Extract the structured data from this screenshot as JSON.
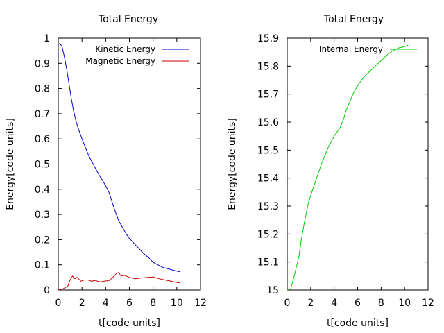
{
  "chart_data": [
    {
      "type": "line",
      "title": "Total Energy",
      "xlabel": "t[code units]",
      "ylabel": "Energy[code units]",
      "xlim": [
        0,
        12
      ],
      "ylim": [
        0,
        1
      ],
      "x_ticks": [
        "0",
        "2",
        "4",
        "6",
        "8",
        "10",
        "12"
      ],
      "y_ticks": [
        "0",
        "0.1",
        "0.2",
        "0.3",
        "0.4",
        "0.5",
        "0.6",
        "0.7",
        "0.8",
        "0.9",
        "1"
      ],
      "grid": false,
      "legend_position": "top-right",
      "series": [
        {
          "name": "Kinetic Energy",
          "color": "#0000cc",
          "x": [
            0,
            0.1,
            0.3,
            0.5,
            0.7,
            0.9,
            1.1,
            1.3,
            1.5,
            1.7,
            2.0,
            2.3,
            2.6,
            3.0,
            3.4,
            3.8,
            4.1,
            4.3,
            4.6,
            4.9,
            5.1,
            5.4,
            5.7,
            6.0,
            6.4,
            6.8,
            7.2,
            7.6,
            8.0,
            8.4,
            8.8,
            9.2,
            9.6,
            10.0,
            10.3
          ],
          "values": [
            0.975,
            0.978,
            0.97,
            0.93,
            0.88,
            0.82,
            0.76,
            0.71,
            0.67,
            0.64,
            0.6,
            0.565,
            0.53,
            0.495,
            0.46,
            0.43,
            0.405,
            0.385,
            0.34,
            0.3,
            0.275,
            0.25,
            0.225,
            0.205,
            0.185,
            0.165,
            0.145,
            0.13,
            0.11,
            0.1,
            0.09,
            0.085,
            0.08,
            0.075,
            0.072
          ]
        },
        {
          "name": "Magnetic Energy",
          "color": "#cc0000",
          "x": [
            0,
            0.4,
            0.8,
            1.0,
            1.2,
            1.4,
            1.6,
            1.9,
            2.2,
            2.5,
            2.8,
            3.1,
            3.5,
            3.9,
            4.3,
            4.6,
            4.9,
            5.1,
            5.3,
            5.6,
            6.0,
            6.5,
            7.0,
            7.5,
            8.0,
            8.5,
            9.0,
            9.5,
            10.0,
            10.3
          ],
          "values": [
            0.0,
            0.005,
            0.015,
            0.04,
            0.055,
            0.045,
            0.05,
            0.035,
            0.04,
            0.04,
            0.035,
            0.038,
            0.032,
            0.035,
            0.038,
            0.05,
            0.065,
            0.07,
            0.055,
            0.058,
            0.05,
            0.045,
            0.048,
            0.05,
            0.052,
            0.045,
            0.04,
            0.035,
            0.03,
            0.028
          ]
        }
      ]
    },
    {
      "type": "line",
      "title": "Total Energy",
      "xlabel": "t[code units]",
      "ylabel": "Energy[code units]",
      "xlim": [
        0,
        12
      ],
      "ylim": [
        15,
        15.9
      ],
      "x_ticks": [
        "0",
        "2",
        "4",
        "6",
        "8",
        "10",
        "12"
      ],
      "y_ticks": [
        "15",
        "15.1",
        "15.2",
        "15.3",
        "15.4",
        "15.5",
        "15.6",
        "15.7",
        "15.8",
        "15.9"
      ],
      "grid": false,
      "legend_position": "top-right",
      "series": [
        {
          "name": "Internal Energy",
          "color": "#00cc00",
          "x": [
            0,
            0.3,
            0.6,
            1.0,
            1.2,
            1.5,
            1.8,
            2.1,
            2.5,
            3.0,
            3.5,
            4.0,
            4.5,
            4.8,
            5.0,
            5.3,
            5.6,
            6.0,
            6.5,
            7.0,
            7.5,
            8.0,
            8.5,
            9.0,
            9.5,
            10.0,
            10.3
          ],
          "values": [
            15.0,
            15.005,
            15.05,
            15.12,
            15.18,
            15.25,
            15.31,
            15.35,
            15.4,
            15.46,
            15.51,
            15.55,
            15.58,
            15.61,
            15.64,
            15.67,
            15.7,
            15.73,
            15.76,
            15.78,
            15.8,
            15.82,
            15.84,
            15.855,
            15.865,
            15.87,
            15.875
          ]
        }
      ]
    }
  ]
}
